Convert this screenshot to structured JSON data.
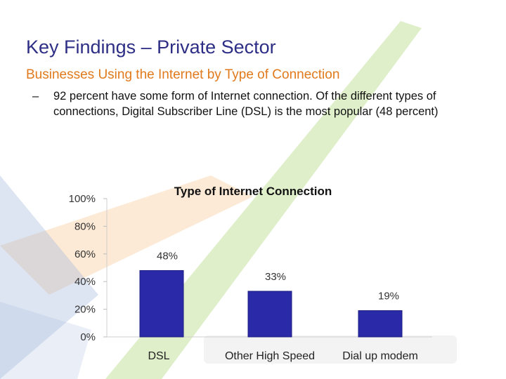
{
  "slide": {
    "title": "Key Findings – Private Sector",
    "subtitle": "Businesses Using the Internet by Type of Connection",
    "bullet_marker": "–",
    "bullet_text": "92 percent have some form of Internet connection.  Of the different types of connections, Digital Subscriber Line (DSL) is the most popular (48 percent)"
  },
  "colors": {
    "title": "#2e2e86",
    "subtitle": "#e07a1c",
    "bar": "#2a2aa8",
    "watermark_green": "#8cc63f",
    "watermark_orange": "#f6b26b",
    "watermark_blue": "#9fb4dc"
  },
  "chart_data": {
    "type": "bar",
    "title": "Type of Internet Connection",
    "categories": [
      "DSL",
      "Other High Speed",
      "Dial up modem"
    ],
    "values": [
      48,
      33,
      19
    ],
    "data_labels": [
      "48%",
      "33%",
      "19%"
    ],
    "y_ticks": [
      "0%",
      "20%",
      "40%",
      "60%",
      "80%",
      "100%"
    ],
    "ylim": [
      0,
      100
    ],
    "xlabel": "",
    "ylabel": "",
    "grid": false,
    "legend": "none"
  }
}
